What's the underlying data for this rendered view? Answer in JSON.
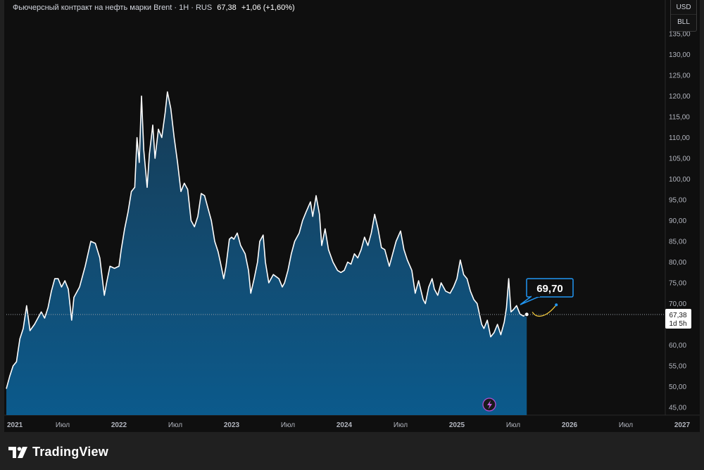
{
  "header": {
    "title": "Фьючерсный контракт на нефть марки Brent · 1H · RUS",
    "last_price": "67,38",
    "change": "+1,06 (+1,60%)"
  },
  "currency_switch": {
    "currency": "USD",
    "unit": "BLL"
  },
  "price_tag": {
    "value": "67,38",
    "countdown": "1d 5h"
  },
  "forecast_label": "69,70",
  "brand": "TradingView",
  "colors": {
    "area_fill": "#0b5a8c",
    "line": "#ffffff",
    "forecast_curve": "#f2c83d",
    "label_border": "#2196f3",
    "background": "#0f0f0f"
  },
  "icons": {
    "brand": "tradingview-logo",
    "flash": "lightning-icon"
  },
  "chart_data": {
    "type": "area",
    "title": "",
    "xlabel": "",
    "ylabel": "",
    "ylim": [
      42,
      137.5
    ],
    "y_ticks": [
      "45,00",
      "50,00",
      "55,00",
      "60,00",
      "65,00",
      "70,00",
      "75,00",
      "80,00",
      "85,00",
      "90,00",
      "95,00",
      "100,00",
      "105,00",
      "110,00",
      "115,00",
      "120,00",
      "125,00",
      "130,00",
      "135,00"
    ],
    "x_ticks": [
      {
        "label": "2021",
        "t": 2021.0
      },
      {
        "label": "Июл",
        "t": 2021.5
      },
      {
        "label": "2022",
        "t": 2022.0
      },
      {
        "label": "Июл",
        "t": 2022.5
      },
      {
        "label": "2023",
        "t": 2023.0
      },
      {
        "label": "Июл",
        "t": 2023.5
      },
      {
        "label": "2024",
        "t": 2024.0
      },
      {
        "label": "Июл",
        "t": 2024.5
      },
      {
        "label": "2025",
        "t": 2025.0
      },
      {
        "label": "Июл",
        "t": 2025.5
      },
      {
        "label": "2026",
        "t": 2026.0
      },
      {
        "label": "Июл",
        "t": 2026.5
      },
      {
        "label": "2027",
        "t": 2027.0
      }
    ],
    "x_range": [
      2021.0,
      2027.25
    ],
    "series": [
      {
        "values": [
          [
            2021.0,
            49.5
          ],
          [
            2021.03,
            52.5
          ],
          [
            2021.06,
            55
          ],
          [
            2021.09,
            56
          ],
          [
            2021.12,
            61.5
          ],
          [
            2021.15,
            64
          ],
          [
            2021.18,
            69.5
          ],
          [
            2021.21,
            63.5
          ],
          [
            2021.25,
            65
          ],
          [
            2021.28,
            66.5
          ],
          [
            2021.31,
            68
          ],
          [
            2021.34,
            66.5
          ],
          [
            2021.37,
            69
          ],
          [
            2021.4,
            73
          ],
          [
            2021.43,
            76
          ],
          [
            2021.46,
            76
          ],
          [
            2021.49,
            74
          ],
          [
            2021.52,
            75.5
          ],
          [
            2021.55,
            73.5
          ],
          [
            2021.58,
            66
          ],
          [
            2021.6,
            71.5
          ],
          [
            2021.65,
            74
          ],
          [
            2021.7,
            79
          ],
          [
            2021.75,
            85
          ],
          [
            2021.79,
            84.5
          ],
          [
            2021.83,
            81
          ],
          [
            2021.87,
            72
          ],
          [
            2021.89,
            75
          ],
          [
            2021.92,
            79
          ],
          [
            2021.96,
            78.5
          ],
          [
            2022.0,
            79
          ],
          [
            2022.02,
            83
          ],
          [
            2022.05,
            88
          ],
          [
            2022.08,
            92
          ],
          [
            2022.11,
            97
          ],
          [
            2022.14,
            98
          ],
          [
            2022.16,
            110
          ],
          [
            2022.18,
            104
          ],
          [
            2022.2,
            120
          ],
          [
            2022.22,
            107
          ],
          [
            2022.25,
            98
          ],
          [
            2022.27,
            106
          ],
          [
            2022.3,
            113
          ],
          [
            2022.32,
            105
          ],
          [
            2022.35,
            112
          ],
          [
            2022.38,
            110
          ],
          [
            2022.41,
            116
          ],
          [
            2022.43,
            121
          ],
          [
            2022.46,
            117
          ],
          [
            2022.49,
            110
          ],
          [
            2022.52,
            104
          ],
          [
            2022.55,
            97
          ],
          [
            2022.58,
            99
          ],
          [
            2022.61,
            97.5
          ],
          [
            2022.64,
            90
          ],
          [
            2022.67,
            88.5
          ],
          [
            2022.7,
            91
          ],
          [
            2022.73,
            96.5
          ],
          [
            2022.76,
            96
          ],
          [
            2022.79,
            93
          ],
          [
            2022.82,
            90
          ],
          [
            2022.85,
            85
          ],
          [
            2022.88,
            82.5
          ],
          [
            2022.9,
            80
          ],
          [
            2022.93,
            76
          ],
          [
            2022.95,
            79
          ],
          [
            2022.98,
            85.5
          ],
          [
            2023.0,
            86
          ],
          [
            2023.02,
            85.5
          ],
          [
            2023.05,
            87
          ],
          [
            2023.08,
            84
          ],
          [
            2023.12,
            82
          ],
          [
            2023.15,
            78
          ],
          [
            2023.17,
            72.5
          ],
          [
            2023.2,
            76
          ],
          [
            2023.23,
            80
          ],
          [
            2023.25,
            85
          ],
          [
            2023.28,
            86.5
          ],
          [
            2023.3,
            80
          ],
          [
            2023.33,
            75
          ],
          [
            2023.37,
            77
          ],
          [
            2023.42,
            76
          ],
          [
            2023.45,
            74
          ],
          [
            2023.47,
            75
          ],
          [
            2023.5,
            78
          ],
          [
            2023.53,
            82
          ],
          [
            2023.56,
            85
          ],
          [
            2023.6,
            87
          ],
          [
            2023.63,
            90
          ],
          [
            2023.66,
            92
          ],
          [
            2023.7,
            94.5
          ],
          [
            2023.72,
            91
          ],
          [
            2023.75,
            96
          ],
          [
            2023.78,
            91.5
          ],
          [
            2023.8,
            84
          ],
          [
            2023.83,
            88
          ],
          [
            2023.86,
            83
          ],
          [
            2023.9,
            80
          ],
          [
            2023.94,
            78
          ],
          [
            2023.97,
            77.5
          ],
          [
            2024.0,
            78
          ],
          [
            2024.03,
            80
          ],
          [
            2024.06,
            79.5
          ],
          [
            2024.09,
            82
          ],
          [
            2024.12,
            81
          ],
          [
            2024.15,
            83
          ],
          [
            2024.18,
            86
          ],
          [
            2024.21,
            84
          ],
          [
            2024.24,
            87
          ],
          [
            2024.27,
            91.5
          ],
          [
            2024.3,
            88
          ],
          [
            2024.33,
            83.5
          ],
          [
            2024.36,
            83
          ],
          [
            2024.4,
            79
          ],
          [
            2024.43,
            82
          ],
          [
            2024.46,
            85
          ],
          [
            2024.5,
            87.5
          ],
          [
            2024.53,
            83
          ],
          [
            2024.56,
            80.5
          ],
          [
            2024.6,
            78
          ],
          [
            2024.63,
            72.5
          ],
          [
            2024.66,
            75.5
          ],
          [
            2024.7,
            71
          ],
          [
            2024.72,
            70
          ],
          [
            2024.75,
            74
          ],
          [
            2024.78,
            76
          ],
          [
            2024.8,
            73.5
          ],
          [
            2024.83,
            72
          ],
          [
            2024.86,
            75
          ],
          [
            2024.9,
            73
          ],
          [
            2024.94,
            72.5
          ],
          [
            2024.97,
            74
          ],
          [
            2025.0,
            76
          ],
          [
            2025.03,
            80.5
          ],
          [
            2025.06,
            77
          ],
          [
            2025.09,
            76
          ],
          [
            2025.12,
            73
          ],
          [
            2025.15,
            71
          ],
          [
            2025.18,
            70
          ],
          [
            2025.22,
            65
          ],
          [
            2025.24,
            64
          ],
          [
            2025.27,
            66
          ],
          [
            2025.3,
            62
          ],
          [
            2025.33,
            63
          ],
          [
            2025.36,
            65
          ],
          [
            2025.39,
            62.5
          ],
          [
            2025.42,
            65.5
          ],
          [
            2025.44,
            69
          ],
          [
            2025.46,
            76
          ],
          [
            2025.48,
            68
          ],
          [
            2025.5,
            68.5
          ],
          [
            2025.53,
            69.5
          ],
          [
            2025.56,
            67.5
          ],
          [
            2025.59,
            67
          ],
          [
            2025.62,
            67.4
          ]
        ]
      }
    ],
    "last_value": 67.38,
    "forecast_value": 69.7
  }
}
